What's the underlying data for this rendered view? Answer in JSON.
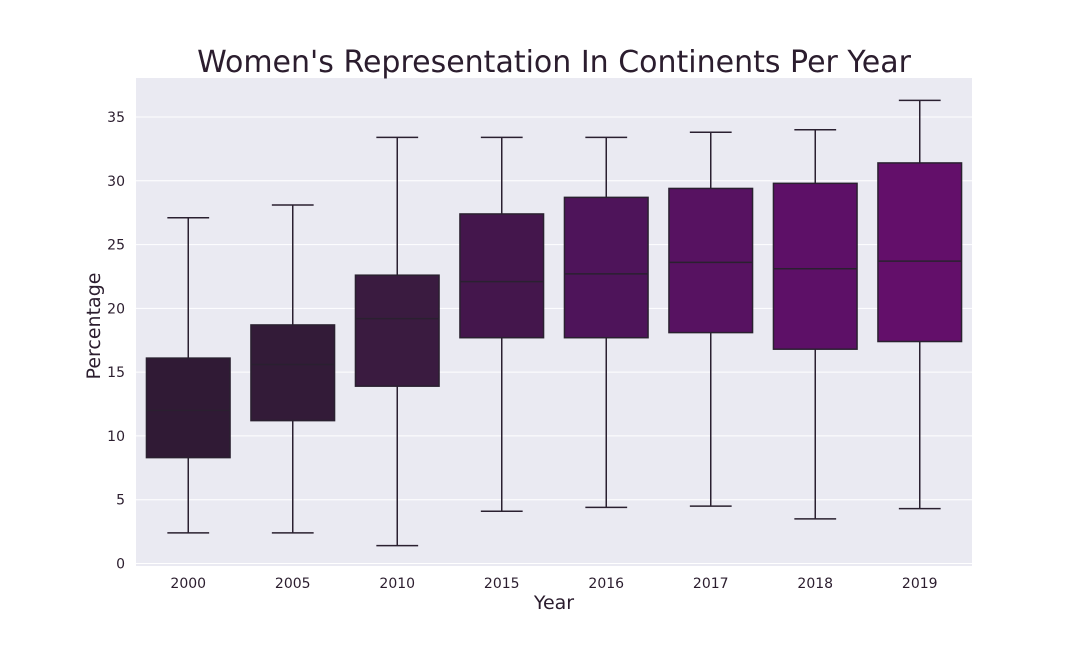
{
  "chart_data": {
    "type": "box",
    "title": "Women's Representation In Continents Per Year",
    "xlabel": "Year",
    "ylabel": "Percentage",
    "ylim": [
      -0.5,
      38
    ],
    "yticks": [
      0,
      5,
      10,
      15,
      20,
      25,
      30,
      35
    ],
    "grid": true,
    "categories": [
      "2000",
      "2005",
      "2010",
      "2015",
      "2016",
      "2017",
      "2018",
      "2019"
    ],
    "boxes": [
      {
        "min": 2.4,
        "q1": 8.3,
        "median": 12.0,
        "q3": 16.1,
        "max": 27.1,
        "color": "#301a35"
      },
      {
        "min": 2.4,
        "q1": 11.2,
        "median": 15.6,
        "q3": 18.7,
        "max": 28.1,
        "color": "#331b38"
      },
      {
        "min": 1.4,
        "q1": 13.9,
        "median": 19.2,
        "q3": 22.6,
        "max": 33.4,
        "color": "#3a1b40"
      },
      {
        "min": 4.1,
        "q1": 17.7,
        "median": 22.1,
        "q3": 27.4,
        "max": 33.4,
        "color": "#44164c"
      },
      {
        "min": 4.4,
        "q1": 17.7,
        "median": 22.7,
        "q3": 28.7,
        "max": 33.4,
        "color": "#4e145a"
      },
      {
        "min": 4.5,
        "q1": 18.1,
        "median": 23.6,
        "q3": 29.4,
        "max": 33.8,
        "color": "#571261"
      },
      {
        "min": 3.5,
        "q1": 16.8,
        "median": 23.1,
        "q3": 29.8,
        "max": 34.0,
        "color": "#5d1067"
      },
      {
        "min": 4.3,
        "q1": 17.4,
        "median": 23.7,
        "q3": 31.4,
        "max": 36.3,
        "color": "#630f6a"
      }
    ]
  }
}
